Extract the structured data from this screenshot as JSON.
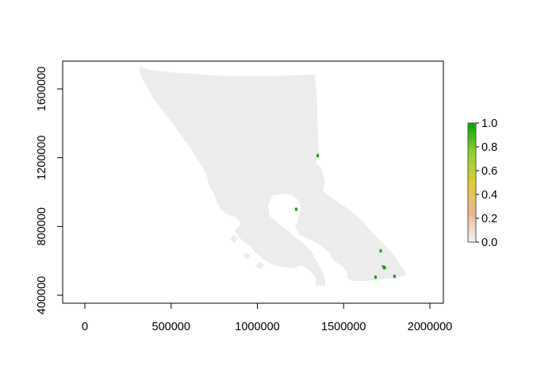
{
  "chart_data": {
    "type": "raster-map",
    "title": "",
    "xlabel": "",
    "ylabel": "",
    "xlim": [
      -130000,
      2080000
    ],
    "ylim": [
      350000,
      1750000
    ],
    "x_ticks": [
      {
        "value": 0,
        "label": "0"
      },
      {
        "value": 500000,
        "label": "500000"
      },
      {
        "value": 1000000,
        "label": "1000000"
      },
      {
        "value": 1500000,
        "label": "1500000"
      },
      {
        "value": 2000000,
        "label": "2000000"
      }
    ],
    "y_ticks": [
      {
        "value": 400000,
        "label": "400000"
      },
      {
        "value": 800000,
        "label": "800000"
      },
      {
        "value": 1200000,
        "label": "1200000"
      },
      {
        "value": 1600000,
        "label": "1600000"
      }
    ],
    "legend": {
      "position": "right",
      "range": [
        0,
        1
      ],
      "ticks": [
        {
          "value": 0.0,
          "label": "0.0"
        },
        {
          "value": 0.2,
          "label": "0.2"
        },
        {
          "value": 0.4,
          "label": "0.4"
        },
        {
          "value": 0.6,
          "label": "0.6"
        },
        {
          "value": 0.8,
          "label": "0.8"
        },
        {
          "value": 1.0,
          "label": "1.0"
        }
      ],
      "colors": [
        "#f2f2f2",
        "#edb48e",
        "#e3ce2b",
        "#8fd12f",
        "#00a600"
      ]
    },
    "colors": {
      "land": "#ececec",
      "positive": "#1a9a1a"
    },
    "high_value_cells": [
      {
        "x": 1350000,
        "y": 1212000,
        "value": 1.0
      },
      {
        "x": 1225000,
        "y": 900000,
        "value": 1.0
      },
      {
        "x": 1715000,
        "y": 658000,
        "value": 1.0
      },
      {
        "x": 1735000,
        "y": 560000,
        "value": 1.0
      },
      {
        "x": 1685000,
        "y": 505000,
        "value": 1.0
      },
      {
        "x": 1795000,
        "y": 510000,
        "value": 1.0
      }
    ]
  }
}
